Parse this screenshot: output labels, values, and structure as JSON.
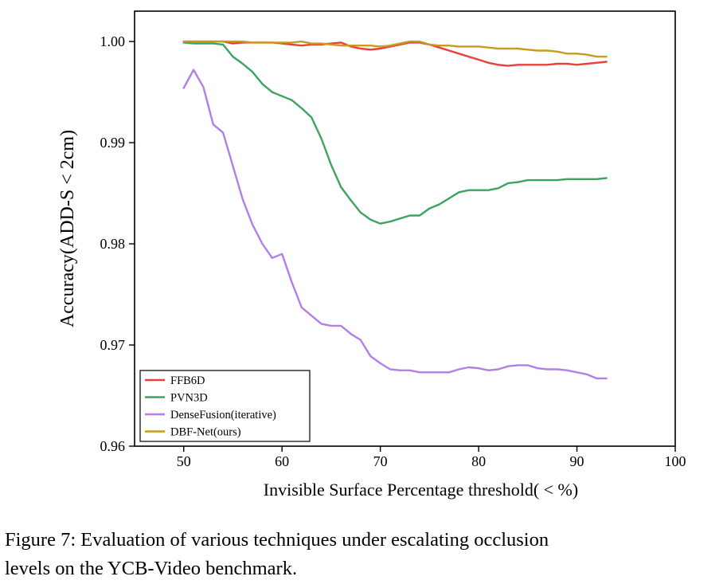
{
  "chart_data": {
    "type": "line",
    "xlabel": "Invisible Surface Percentage threshold( < %)",
    "ylabel": "Accuracy(ADD-S < 2cm)",
    "xlim": [
      45,
      100
    ],
    "ylim": [
      0.96,
      1.003
    ],
    "xticks": [
      50,
      60,
      70,
      80,
      90,
      100
    ],
    "yticks": [
      0.96,
      0.97,
      0.98,
      0.99,
      1.0
    ],
    "ytick_labels": [
      "0.96",
      "0.97",
      "0.98",
      "0.99",
      "1.00"
    ],
    "grid": false,
    "legend_position": "bottom-left",
    "series": [
      {
        "name": "FFB6D",
        "color": "#e8403c",
        "x": [
          50,
          51,
          52,
          53,
          54,
          55,
          56,
          57,
          58,
          59,
          60,
          61,
          62,
          63,
          64,
          65,
          66,
          67,
          68,
          69,
          70,
          71,
          72,
          73,
          74,
          75,
          76,
          77,
          78,
          79,
          80,
          81,
          82,
          83,
          84,
          85,
          86,
          87,
          88,
          89,
          90,
          91,
          92,
          93
        ],
        "y": [
          1.0,
          1.0,
          1.0,
          1.0,
          1.0,
          0.9998,
          0.9999,
          0.9999,
          0.9999,
          0.9999,
          0.9998,
          0.9997,
          0.9996,
          0.9997,
          0.9997,
          0.9998,
          0.9999,
          0.9995,
          0.9993,
          0.9992,
          0.9993,
          0.9995,
          0.9997,
          0.9999,
          0.9999,
          0.9997,
          0.9994,
          0.9991,
          0.9988,
          0.9985,
          0.9982,
          0.9979,
          0.9977,
          0.9976,
          0.9977,
          0.9977,
          0.9977,
          0.9977,
          0.9978,
          0.9978,
          0.9977,
          0.9978,
          0.9979,
          0.998
        ]
      },
      {
        "name": "PVN3D",
        "color": "#3aa55f",
        "x": [
          50,
          51,
          52,
          53,
          54,
          55,
          56,
          57,
          58,
          59,
          60,
          61,
          62,
          63,
          64,
          65,
          66,
          67,
          68,
          69,
          70,
          71,
          72,
          73,
          74,
          75,
          76,
          77,
          78,
          79,
          80,
          81,
          82,
          83,
          84,
          85,
          86,
          87,
          88,
          89,
          90,
          91,
          92,
          93
        ],
        "y": [
          0.9999,
          0.9998,
          0.9998,
          0.9998,
          0.9997,
          0.9985,
          0.9978,
          0.997,
          0.9958,
          0.995,
          0.9946,
          0.9942,
          0.9934,
          0.9925,
          0.9904,
          0.9878,
          0.9856,
          0.9843,
          0.9831,
          0.9824,
          0.982,
          0.9822,
          0.9825,
          0.9828,
          0.9828,
          0.9835,
          0.9839,
          0.9845,
          0.9851,
          0.9853,
          0.9853,
          0.9853,
          0.9855,
          0.986,
          0.9861,
          0.9863,
          0.9863,
          0.9863,
          0.9863,
          0.9864,
          0.9864,
          0.9864,
          0.9864,
          0.9865
        ]
      },
      {
        "name": "DenseFusion(iterative)",
        "color": "#b27ee8",
        "x": [
          50,
          51,
          52,
          53,
          54,
          55,
          56,
          57,
          58,
          59,
          60,
          61,
          62,
          63,
          64,
          65,
          66,
          67,
          68,
          69,
          70,
          71,
          72,
          73,
          74,
          75,
          76,
          77,
          78,
          79,
          80,
          81,
          82,
          83,
          84,
          85,
          86,
          87,
          88,
          89,
          90,
          91,
          92,
          93
        ],
        "y": [
          0.9954,
          0.9972,
          0.9955,
          0.9918,
          0.991,
          0.9877,
          0.9844,
          0.9819,
          0.98,
          0.9786,
          0.979,
          0.9762,
          0.9737,
          0.9729,
          0.9721,
          0.9719,
          0.9719,
          0.9711,
          0.9705,
          0.9689,
          0.9682,
          0.9676,
          0.9675,
          0.9675,
          0.9673,
          0.9673,
          0.9673,
          0.9673,
          0.9676,
          0.9678,
          0.9677,
          0.9675,
          0.9676,
          0.9679,
          0.968,
          0.968,
          0.9677,
          0.9676,
          0.9676,
          0.9675,
          0.9673,
          0.9671,
          0.9667,
          0.9667
        ]
      },
      {
        "name": "DBF-Net(ours)",
        "color": "#c99a1e",
        "x": [
          50,
          51,
          52,
          53,
          54,
          55,
          56,
          57,
          58,
          59,
          60,
          61,
          62,
          63,
          64,
          65,
          66,
          67,
          68,
          69,
          70,
          71,
          72,
          73,
          74,
          75,
          76,
          77,
          78,
          79,
          80,
          81,
          82,
          83,
          84,
          85,
          86,
          87,
          88,
          89,
          90,
          91,
          92,
          93
        ],
        "y": [
          1.0,
          1.0,
          1.0,
          1.0,
          1.0,
          1.0,
          1.0,
          0.9999,
          0.9999,
          0.9999,
          0.9999,
          0.9999,
          1.0,
          0.9998,
          0.9998,
          0.9997,
          0.9996,
          0.9996,
          0.9996,
          0.9996,
          0.9995,
          0.9996,
          0.9998,
          1.0,
          1.0,
          0.9997,
          0.9996,
          0.9996,
          0.9995,
          0.9995,
          0.9995,
          0.9994,
          0.9993,
          0.9993,
          0.9993,
          0.9992,
          0.9991,
          0.9991,
          0.999,
          0.9988,
          0.9988,
          0.9987,
          0.9985,
          0.9985
        ]
      }
    ]
  },
  "caption": {
    "line1": "Figure 7:  Evaluation of various techniques under escalating occlusion",
    "line2": "levels on the YCB-Video benchmark."
  }
}
